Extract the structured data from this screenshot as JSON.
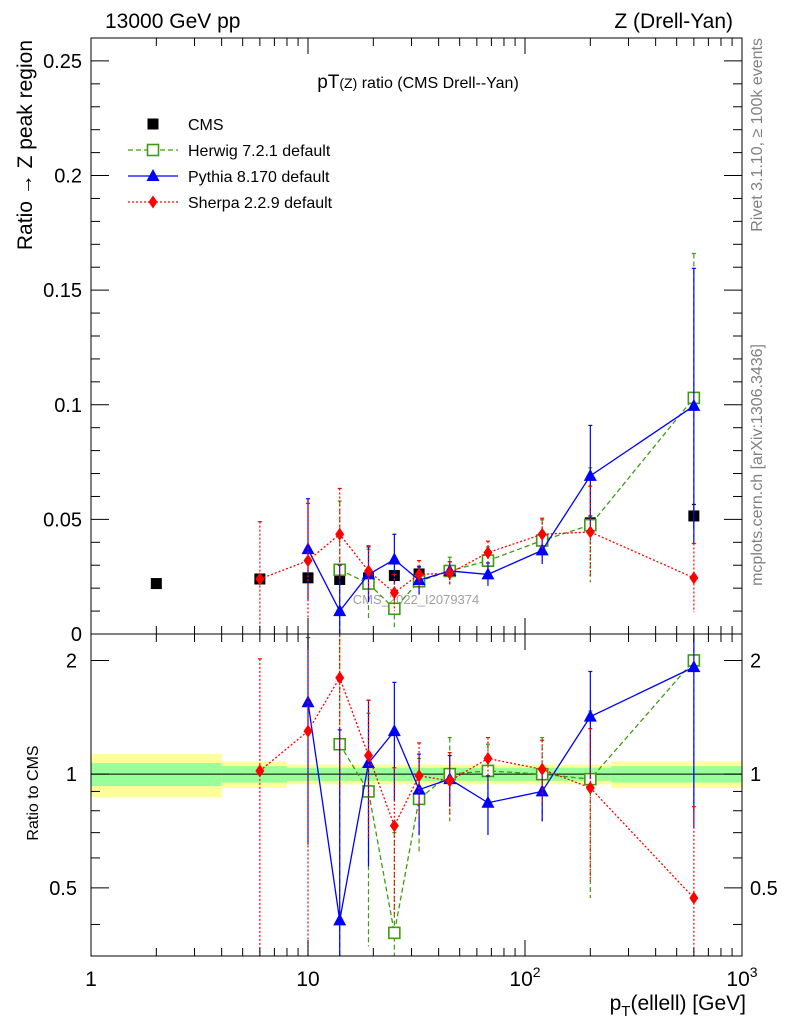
{
  "header": {
    "left": "13000 GeV pp",
    "right": "Z (Drell-Yan)"
  },
  "side_labels": {
    "rivet": "Rivet 3.1.10, ≥ 100k events",
    "mcplots": "mcplots.cern.ch [arXiv:1306.3436]"
  },
  "chart_data": {
    "type": "scatter",
    "title_main": "pT",
    "title_sub": "(Z)",
    "title_rest": " ratio (CMS Drell--Yan)",
    "watermark": "CMS_2022_I2079374",
    "xlabel_main": "p",
    "xlabel_sub": "T",
    "xlabel_rest": "(ellell) [GeV]",
    "ylabel_top": "Ratio → Z peak region",
    "ylabel_bottom": "Ratio to CMS",
    "xscale": "log",
    "xlim": [
      1,
      1000
    ],
    "ylim_top": [
      0,
      0.26
    ],
    "ylim_ratio": [
      0.33,
      2.35
    ],
    "x_ticks": [
      {
        "v": 1,
        "base": "1",
        "exp": ""
      },
      {
        "v": 10,
        "base": "10",
        "exp": ""
      },
      {
        "v": 100,
        "base": "10",
        "exp": "2"
      },
      {
        "v": 1000,
        "base": "10",
        "exp": "3"
      }
    ],
    "y_ticks_top": [
      "0",
      "0.05",
      "0.1",
      "0.15",
      "0.2",
      "0.25"
    ],
    "y_ticks_ratio": [
      "0.5",
      "1",
      "2"
    ],
    "legend_position": "top-left",
    "bands": [
      {
        "x0": 1,
        "x1": 4,
        "green": [
          0.93,
          1.07
        ],
        "yellow": [
          0.87,
          1.13
        ]
      },
      {
        "x0": 4,
        "x1": 8,
        "green": [
          0.95,
          1.05
        ],
        "yellow": [
          0.92,
          1.08
        ]
      },
      {
        "x0": 8,
        "x1": 250,
        "green": [
          0.96,
          1.04
        ],
        "yellow": [
          0.94,
          1.06
        ]
      },
      {
        "x0": 250,
        "x1": 1000,
        "green": [
          0.95,
          1.05
        ],
        "yellow": [
          0.92,
          1.08
        ]
      }
    ],
    "series": [
      {
        "name": "CMS",
        "color": "#000000",
        "marker": "filled-square",
        "line": "none",
        "x": [
          2,
          6,
          10,
          14,
          19,
          25,
          32.5,
          45,
          67.5,
          120,
          200,
          600
        ],
        "y": [
          0.022,
          0.024,
          0.0245,
          0.0238,
          0.0245,
          0.0255,
          0.0262,
          0.0275,
          0.0317,
          0.041,
          0.0485,
          0.0515
        ],
        "yerr": [
          0.001,
          0.001,
          0.001,
          0.001,
          0.001,
          0.001,
          0.001,
          0.001,
          0.0015,
          0.002,
          0.003,
          0.005
        ]
      },
      {
        "name": "Herwig 7.2.1 default",
        "color": "#3f9b0f",
        "marker": "open-square",
        "line": "dashed",
        "x": [
          14,
          19,
          25,
          32.5,
          45,
          67.5,
          120,
          200,
          600
        ],
        "y": [
          0.028,
          0.022,
          0.011,
          0.023,
          0.0275,
          0.032,
          0.0408,
          0.0475,
          0.103
        ],
        "yerr": [
          0.03,
          0.015,
          0.008,
          0.006,
          0.006,
          0.006,
          0.009,
          0.025,
          0.063
        ],
        "ratio": [
          1.2,
          0.9,
          0.38,
          0.86,
          1.0,
          1.02,
          1.0,
          0.97,
          2.0
        ],
        "ratio_err": [
          1.2,
          0.55,
          0.32,
          0.24,
          0.25,
          0.18,
          0.25,
          0.5,
          1.2
        ]
      },
      {
        "name": "Pythia 8.170 default",
        "color": "#0000ff",
        "marker": "filled-triangle",
        "line": "solid",
        "x": [
          10,
          14,
          19,
          25,
          32.5,
          45,
          67.5,
          120,
          200,
          600
        ],
        "y": [
          0.037,
          0.01,
          0.026,
          0.0325,
          0.0235,
          0.0275,
          0.026,
          0.0365,
          0.069,
          0.0995
        ],
        "yerr": [
          0.022,
          0.02,
          0.012,
          0.011,
          0.006,
          0.004,
          0.005,
          0.006,
          0.022,
          0.06
        ],
        "ratio": [
          1.55,
          0.41,
          1.07,
          1.3,
          0.91,
          0.97,
          0.84,
          0.9,
          1.42,
          1.92
        ],
        "ratio_err": [
          0.9,
          0.9,
          0.5,
          0.45,
          0.22,
          0.15,
          0.15,
          0.15,
          0.45,
          1.2
        ]
      },
      {
        "name": "Sherpa 2.2.9 default",
        "color": "#ff0000",
        "marker": "filled-diamond",
        "line": "dotted",
        "x": [
          6,
          10,
          14,
          19,
          25,
          32.5,
          45,
          67.5,
          120,
          200,
          600
        ],
        "y": [
          0.024,
          0.032,
          0.0435,
          0.0275,
          0.018,
          0.026,
          0.0265,
          0.0355,
          0.0435,
          0.0445,
          0.0245
        ],
        "yerr": [
          0.025,
          0.025,
          0.02,
          0.011,
          0.008,
          0.006,
          0.005,
          0.005,
          0.007,
          0.02,
          0.015
        ],
        "ratio": [
          1.02,
          1.3,
          1.8,
          1.12,
          0.73,
          0.99,
          0.96,
          1.1,
          1.03,
          0.92,
          0.47
        ],
        "ratio_err": [
          1.0,
          1.0,
          0.9,
          0.45,
          0.31,
          0.22,
          0.18,
          0.15,
          0.2,
          0.4,
          0.35
        ]
      }
    ]
  }
}
